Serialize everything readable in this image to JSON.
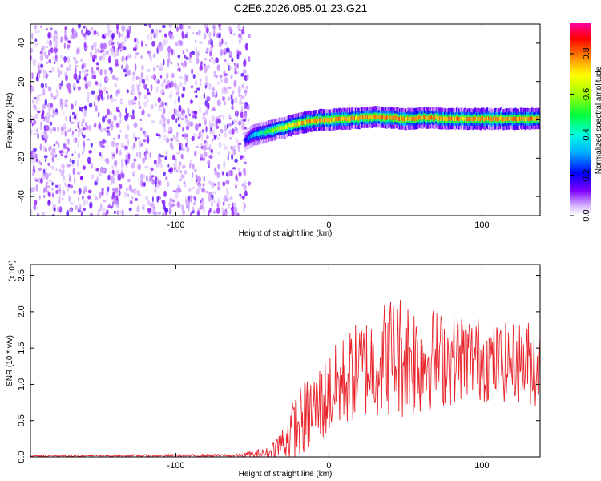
{
  "title": "C2E6.2026.085.01.23.G21",
  "chart_data": [
    {
      "type": "heatmap",
      "xlabel": "Height of straight line (km)",
      "ylabel": "Frequency (Hz)",
      "xlim": [
        -195,
        138
      ],
      "ylim": [
        -50,
        50
      ],
      "x_ticks": [
        -100,
        0,
        100
      ],
      "x_tick_labels": [
        "-100",
        "0",
        "100"
      ],
      "y_ticks": [
        -40,
        -20,
        0,
        20,
        40
      ],
      "y_tick_labels": [
        "-40",
        "-20",
        "0",
        "20",
        "40"
      ],
      "colorbar": {
        "label": "Normalized spectral amplitude",
        "range": [
          0,
          0.95
        ],
        "ticks": [
          0.0,
          0.2,
          0.4,
          0.6,
          0.8
        ],
        "tick_labels": [
          "0.0",
          "0.2",
          "0.4",
          "0.6",
          "0.8"
        ]
      },
      "noise_region": {
        "x": [
          -195,
          -52
        ],
        "amplitude": 0.15
      },
      "signal_track": {
        "x": [
          -55,
          -50,
          -45,
          -40,
          -35,
          -30,
          -25,
          -20,
          -15,
          -10,
          -5,
          0,
          10,
          20,
          30,
          40,
          50,
          60,
          70,
          80,
          90,
          100,
          110,
          120,
          130,
          138
        ],
        "frequency": [
          -11,
          -8,
          -7,
          -6,
          -5,
          -4,
          -3,
          -2,
          -1,
          -0.5,
          0,
          0,
          0.5,
          1,
          1.5,
          1,
          0.5,
          1,
          1,
          0.5,
          0.5,
          0.5,
          0.5,
          0.5,
          0.5,
          0.5
        ],
        "amplitude": [
          0.25,
          0.4,
          0.5,
          0.6,
          0.7,
          0.75,
          0.8,
          0.85,
          0.9,
          0.9,
          0.9,
          0.9,
          0.9,
          0.9,
          0.9,
          0.9,
          0.9,
          0.9,
          0.9,
          0.9,
          0.9,
          0.9,
          0.9,
          0.9,
          0.9,
          0.9
        ]
      }
    },
    {
      "type": "line",
      "xlabel": "Height of straight line (km)",
      "ylabel": "SNR (10 * v/v)",
      "y_scale_label": "(x10⁴)",
      "xlim": [
        -195,
        138
      ],
      "ylim": [
        0,
        26500
      ],
      "x_ticks": [
        -100,
        0,
        100
      ],
      "x_tick_labels": [
        "-100",
        "0",
        "100"
      ],
      "y_ticks": [
        0,
        5000,
        10000,
        15000,
        20000,
        25000
      ],
      "y_tick_labels": [
        "0.0",
        "0.5",
        "1.0",
        "1.5",
        "2.0",
        "2.5"
      ],
      "series": [
        {
          "color": "#e8232a",
          "envelope_x": [
            -195,
            -60,
            -40,
            -30,
            -25,
            -20,
            -10,
            0,
            10,
            20,
            30,
            40,
            50,
            60,
            70,
            80,
            90,
            100,
            110,
            120,
            130,
            138
          ],
          "envelope_mean": [
            150,
            200,
            500,
            2000,
            3500,
            4500,
            6500,
            8500,
            10500,
            12000,
            13000,
            14000,
            14000,
            13500,
            13500,
            13500,
            14000,
            13500,
            13000,
            13000,
            13000,
            12500
          ],
          "envelope_amplitude": [
            120,
            200,
            800,
            2500,
            4000,
            5000,
            5500,
            6000,
            6500,
            7000,
            7500,
            8500,
            9000,
            8000,
            7000,
            6500,
            6000,
            6000,
            5500,
            5500,
            6000,
            6000
          ]
        }
      ]
    }
  ]
}
